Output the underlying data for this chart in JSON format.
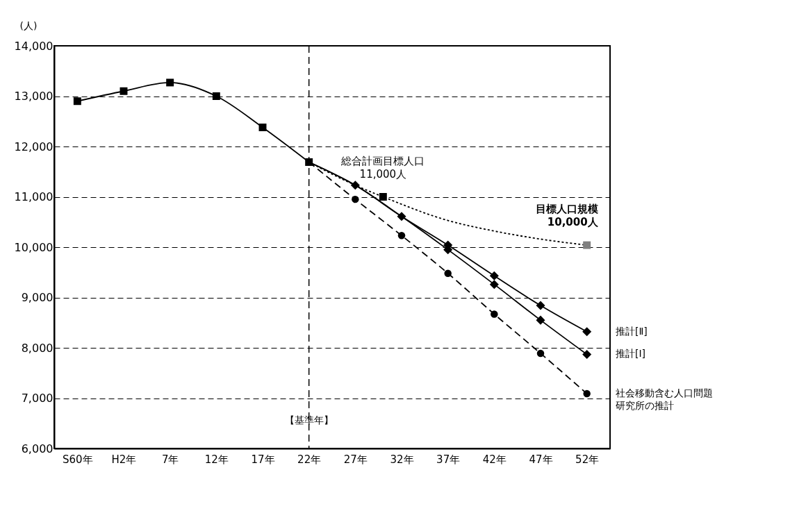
{
  "chart_data": {
    "type": "line",
    "ylabel": "(人)",
    "xlim": [
      -5.5,
      54.5
    ],
    "xticks": [
      {
        "value": -3,
        "label": "S60年"
      },
      {
        "value": 2,
        "label": "H2年"
      },
      {
        "value": 7,
        "label": "7年"
      },
      {
        "value": 12,
        "label": "12年"
      },
      {
        "value": 17,
        "label": "17年"
      },
      {
        "value": 22,
        "label": "22年"
      },
      {
        "value": 27,
        "label": "27年"
      },
      {
        "value": 32,
        "label": "32年"
      },
      {
        "value": 37,
        "label": "37年"
      },
      {
        "value": 42,
        "label": "42年"
      },
      {
        "value": 47,
        "label": "47年"
      },
      {
        "value": 52,
        "label": "52年"
      }
    ],
    "ylim": [
      6000,
      14000
    ],
    "yticks": [
      {
        "value": 6000,
        "label": "6,000"
      },
      {
        "value": 7000,
        "label": "7,000"
      },
      {
        "value": 8000,
        "label": "8,000"
      },
      {
        "value": 9000,
        "label": "9,000"
      },
      {
        "value": 10000,
        "label": "10,000"
      },
      {
        "value": 11000,
        "label": "11,000"
      },
      {
        "value": 12000,
        "label": "12,000"
      },
      {
        "value": 13000,
        "label": "13,000"
      },
      {
        "value": 14000,
        "label": "14,000"
      }
    ],
    "grid": "y",
    "legend": false,
    "series": [
      {
        "color": "#000000",
        "marker": "square",
        "line_style": "solid",
        "x": [
          -3,
          2,
          7,
          12,
          17,
          22
        ],
        "values": [
          12900,
          13100,
          13270,
          13000,
          12380,
          11690
        ]
      },
      {
        "color": "#000000",
        "marker": "none",
        "line_style": "dotted",
        "x": [
          22,
          27,
          30,
          37,
          42,
          47,
          52
        ],
        "values": [
          11690,
          11230,
          11000,
          10530,
          10320,
          10160,
          10040
        ]
      },
      {
        "type": "scatter",
        "marker": "square",
        "colors": [
          "#000000",
          "#808080"
        ],
        "x": [
          30,
          52
        ],
        "values": [
          11000,
          10040
        ]
      },
      {
        "name": "推計[Ⅱ]",
        "color": "#000000",
        "marker": "diamond",
        "line_style": "solid",
        "x": [
          22,
          27,
          32,
          37,
          42,
          47,
          52
        ],
        "values": [
          11690,
          11230,
          10610,
          10040,
          9430,
          8840,
          8320
        ]
      },
      {
        "name": "推計[Ⅰ]",
        "color": "#000000",
        "marker": "diamond",
        "line_style": "solid",
        "x": [
          22,
          27,
          32,
          37,
          42,
          47,
          52
        ],
        "values": [
          11690,
          11230,
          10610,
          9950,
          9260,
          8550,
          7870
        ]
      },
      {
        "name": "社会移動含む人口問題研究所の推計",
        "color": "#000000",
        "marker": "circle",
        "line_style": "dashed",
        "x": [
          22,
          27,
          32,
          37,
          42,
          47,
          52
        ],
        "values": [
          11690,
          10950,
          10230,
          9480,
          8670,
          7890,
          7090
        ]
      }
    ],
    "annotations": [
      {
        "text": "総合計画目標人口\n11,000人",
        "x": 30,
        "y": 11000
      },
      {
        "text": "目標人口規模\n10,000人",
        "x": 52,
        "y": 10040
      }
    ],
    "ref_lines": [
      {
        "axis": "x",
        "value": 22,
        "label": "【基準年】",
        "line_style": "dashed",
        "color": "#000000"
      }
    ]
  }
}
